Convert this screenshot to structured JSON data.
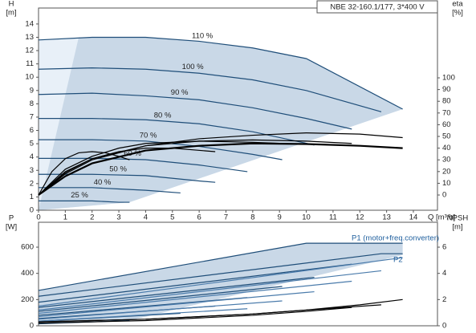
{
  "chart_data": [
    {
      "type": "line",
      "title": "NBE 32-160.1/177, 3*400 V",
      "y_label": [
        "H",
        "[m]"
      ],
      "y2_label": [
        "eta",
        "[%]"
      ],
      "x_label": "Q [m³/h]",
      "xlim": [
        0,
        14.9
      ],
      "ylim": [
        0,
        15.2
      ],
      "y2lim": [
        -13,
        159.6
      ],
      "xticks": [
        0,
        1,
        2,
        3,
        4,
        5,
        6,
        7,
        8,
        9,
        10,
        11,
        12,
        13,
        14
      ],
      "yticks": [
        0,
        1,
        2,
        3,
        4,
        5,
        6,
        7,
        8,
        9,
        10,
        11,
        12,
        13,
        14
      ],
      "y2ticks": [
        0,
        10,
        20,
        30,
        40,
        50,
        60,
        70,
        80,
        90,
        100
      ],
      "regions": [
        {
          "color": "#e8f0f8",
          "x": [
            0,
            2,
            4,
            6,
            8,
            10,
            13.6,
            3.4,
            0
          ],
          "y": [
            12.8,
            13.0,
            13.0,
            12.7,
            12.2,
            11.4,
            7.6,
            0.6,
            0
          ]
        },
        {
          "color": "#c9d8e7",
          "x": [
            1.5,
            2,
            4,
            6,
            8,
            10,
            13.6,
            3.4,
            0
          ],
          "y": [
            13.0,
            13.0,
            13.0,
            12.7,
            12.2,
            11.4,
            7.6,
            0.6,
            0
          ]
        }
      ],
      "series": [
        {
          "name": "110 %",
          "color": "#1f4e79",
          "x": [
            0,
            2,
            4,
            6,
            8,
            10,
            13.6
          ],
          "values": [
            12.8,
            13.0,
            13.0,
            12.7,
            12.2,
            11.4,
            7.6
          ]
        },
        {
          "name": "100 %",
          "color": "#1f4e79",
          "x": [
            0,
            2,
            4,
            6,
            8,
            10,
            12.8
          ],
          "values": [
            10.6,
            10.7,
            10.6,
            10.3,
            9.8,
            9.0,
            7.4
          ]
        },
        {
          "name": "90 %",
          "color": "#1f4e79",
          "x": [
            0,
            2,
            4,
            6,
            8,
            10,
            11.7
          ],
          "values": [
            8.7,
            8.8,
            8.6,
            8.3,
            7.7,
            6.9,
            6.1
          ]
        },
        {
          "name": "80 %",
          "color": "#1f4e79",
          "x": [
            0,
            2,
            4,
            6,
            8,
            10.3
          ],
          "values": [
            6.9,
            6.9,
            6.8,
            6.5,
            5.9,
            4.9
          ]
        },
        {
          "name": "70 %",
          "color": "#1f4e79",
          "x": [
            0,
            2,
            4,
            6,
            8,
            9.1
          ],
          "values": [
            5.3,
            5.3,
            5.2,
            4.8,
            4.2,
            3.8
          ]
        },
        {
          "name": "60 %",
          "color": "#1f4e79",
          "x": [
            0,
            2,
            4,
            6,
            7.8
          ],
          "values": [
            3.9,
            3.9,
            3.8,
            3.4,
            2.9
          ]
        },
        {
          "name": "50 %",
          "color": "#1f4e79",
          "x": [
            0,
            2,
            4,
            6,
            6.6
          ],
          "values": [
            2.7,
            2.7,
            2.6,
            2.2,
            2.1
          ]
        },
        {
          "name": "40 %",
          "color": "#1f4e79",
          "x": [
            0,
            1,
            2,
            3,
            4,
            5.3
          ],
          "values": [
            1.7,
            1.7,
            1.7,
            1.6,
            1.5,
            1.3
          ]
        },
        {
          "name": "25 %",
          "color": "#1f4e79",
          "x": [
            0,
            1,
            2,
            3,
            3.4
          ],
          "values": [
            0.7,
            0.7,
            0.7,
            0.6,
            0.6
          ]
        },
        {
          "axis": "y2",
          "color": "#000000",
          "x": [
            0,
            1,
            2,
            4,
            6,
            8,
            10,
            12,
            13.6
          ],
          "values": [
            0,
            18,
            30,
            42,
            48,
            51,
            53,
            52,
            49
          ]
        },
        {
          "axis": "y2",
          "color": "#000000",
          "x": [
            0,
            1,
            2,
            4,
            6,
            8,
            10,
            11.7
          ],
          "values": [
            0,
            19,
            31,
            42,
            46,
            47,
            46,
            44
          ]
        },
        {
          "axis": "y2",
          "color": "#000000",
          "x": [
            0,
            1,
            2,
            3,
            4,
            6,
            8,
            9.1
          ],
          "values": [
            0,
            22,
            33,
            40,
            44,
            46,
            45,
            44
          ]
        },
        {
          "axis": "y2",
          "color": "#000000",
          "x": [
            0,
            1,
            2,
            3,
            4,
            5,
            6.6
          ],
          "values": [
            0,
            20,
            31,
            37,
            40,
            40,
            37
          ]
        },
        {
          "axis": "y2",
          "color": "#000000",
          "x": [
            0,
            0.5,
            1,
            1.5,
            2,
            2.5,
            3,
            3.4
          ],
          "values": [
            0,
            20,
            31,
            36,
            37,
            36,
            33,
            30
          ]
        },
        {
          "axis": "y2",
          "color": "#000000",
          "line_width": 2.2,
          "x": [
            0,
            1,
            2,
            4,
            6,
            8,
            10,
            12,
            13.6
          ],
          "values": [
            0,
            16,
            27,
            38,
            42,
            44,
            43.5,
            42,
            40
          ]
        }
      ]
    },
    {
      "type": "line",
      "y_label": [
        "P",
        "[W]"
      ],
      "y2_label": [
        "NPSH",
        "[m]"
      ],
      "annotations": [
        "P1 (motor+freq.converter)",
        "P2"
      ],
      "xlim": [
        0,
        14.9
      ],
      "ylim": [
        0,
        790
      ],
      "y2lim": [
        0,
        7.9
      ],
      "yticks": [
        0,
        200,
        400,
        600
      ],
      "y2ticks": [
        0,
        2,
        4,
        6
      ],
      "regions": [
        {
          "color": "#c9d8e7",
          "x": [
            0,
            10,
            13.6,
            13.6,
            3.4,
            0
          ],
          "y": [
            270,
            630,
            630,
            540,
            40,
            15
          ]
        }
      ],
      "series": [
        {
          "color": "#1f4e79",
          "x": [
            0,
            10,
            13.6
          ],
          "values": [
            270,
            630,
            630
          ]
        },
        {
          "color": "#1f4e79",
          "x": [
            0,
            12.8,
            13.6
          ],
          "values": [
            225,
            550,
            550
          ]
        },
        {
          "color": "#1f4e79",
          "x": [
            0,
            11.7
          ],
          "values": [
            180,
            470
          ]
        },
        {
          "color": "#1f4e79",
          "x": [
            0,
            10.3
          ],
          "values": [
            140,
            370
          ]
        },
        {
          "color": "#1f4e79",
          "x": [
            0,
            9.1
          ],
          "values": [
            110,
            300
          ]
        },
        {
          "color": "#1f4e79",
          "x": [
            0,
            7.8
          ],
          "values": [
            80,
            215
          ]
        },
        {
          "color": "#1f4e79",
          "x": [
            0,
            6.6
          ],
          "values": [
            55,
            150
          ]
        },
        {
          "color": "#1f4e79",
          "x": [
            0,
            5.3
          ],
          "values": [
            35,
            95
          ]
        },
        {
          "color": "#1f4e79",
          "x": [
            0,
            3.4
          ],
          "values": [
            15,
            40
          ]
        },
        {
          "color": "#4a7bab",
          "x": [
            0,
            13.6
          ],
          "values": [
            150,
            520
          ]
        },
        {
          "color": "#4a7bab",
          "x": [
            0,
            12.8
          ],
          "values": [
            120,
            420
          ]
        },
        {
          "color": "#4a7bab",
          "x": [
            0,
            11.7
          ],
          "values": [
            95,
            340
          ]
        },
        {
          "color": "#4a7bab",
          "x": [
            0,
            10.3
          ],
          "values": [
            70,
            260
          ]
        },
        {
          "color": "#4a7bab",
          "x": [
            0,
            9.1
          ],
          "values": [
            50,
            190
          ]
        },
        {
          "color": "#4a7bab",
          "x": [
            0,
            7.8
          ],
          "values": [
            35,
            130
          ]
        },
        {
          "axis": "y2",
          "color": "#000000",
          "x": [
            0,
            4,
            8,
            10,
            12,
            13.6
          ],
          "values": [
            0.3,
            0.5,
            0.9,
            1.2,
            1.6,
            2.0
          ]
        },
        {
          "axis": "y2",
          "color": "#000000",
          "x": [
            0,
            4,
            8,
            10,
            12.8
          ],
          "values": [
            0.3,
            0.5,
            0.9,
            1.2,
            1.6
          ]
        },
        {
          "axis": "y2",
          "color": "#000000",
          "x": [
            0,
            4,
            8,
            10,
            11.7
          ],
          "values": [
            0.2,
            0.4,
            0.8,
            1.1,
            1.4
          ]
        }
      ]
    }
  ]
}
